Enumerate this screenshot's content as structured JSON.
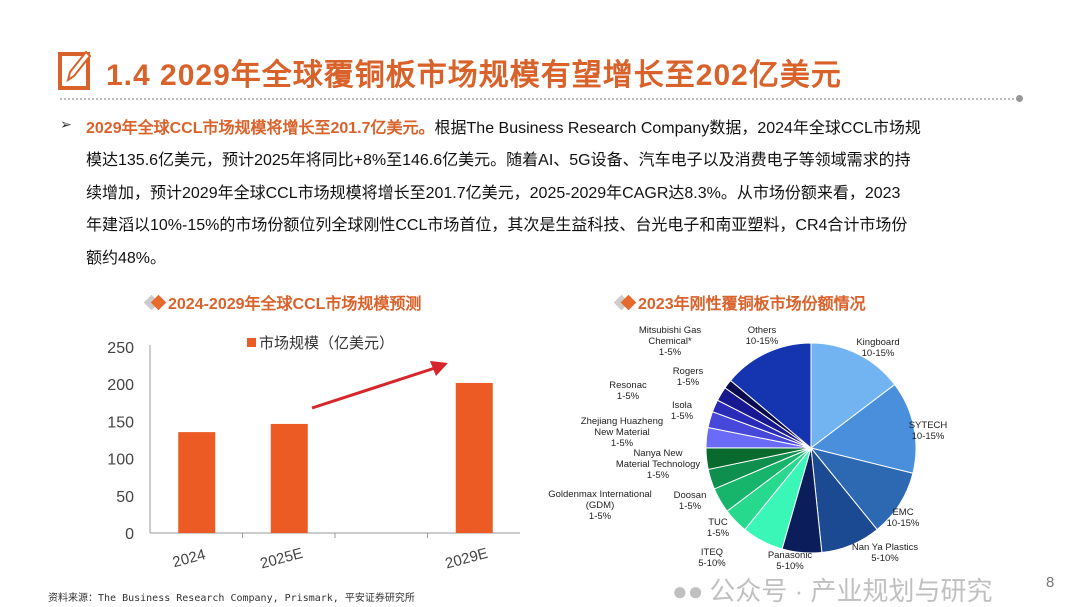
{
  "header": {
    "title": "1.4 2029年全球覆铜板市场规模有望增长至202亿美元",
    "icon": "edit-pencil-icon"
  },
  "body": {
    "highlight": "2029年全球CCL市场规模将增长至201.7亿美元。",
    "lines": [
      "根据The Business Research Company数据，2024年全球CCL市场规",
      "模达135.6亿美元，预计2025年将同比+8%至146.6亿美元。随着AI、5G设备、汽车电子以及消费电子等领域需求的持",
      "续增加，预计2029年全球CCL市场规模将增长至201.7亿美元，2025-2029年CAGR达8.3%。从市场份额来看，2023",
      "年建滔以10%-15%的市场份额位列全球刚性CCL市场首位，其次是生益科技、台光电子和南亚塑料，CR4合计市场份",
      "额约48%。"
    ]
  },
  "colors": {
    "accent": "#d9622b",
    "bar": "#ec5b24",
    "arrow": "#d7262b"
  },
  "chart_data": [
    {
      "type": "bar",
      "title": "2024-2029年全球CCL市场规模预测",
      "categories": [
        "2024",
        "2025E",
        "",
        "2029E"
      ],
      "series": [
        {
          "name": "市场规模（亿美元）",
          "values": [
            135.6,
            146.6,
            null,
            201.7
          ]
        }
      ],
      "ylim": [
        0,
        250
      ],
      "yticks": [
        "0",
        "50",
        "100",
        "150",
        "200",
        "250"
      ],
      "legend": "top",
      "grid": false
    },
    {
      "type": "pie",
      "title": "2023年刚性覆铜板市场份额情况",
      "slices": [
        {
          "label": "Kingboard",
          "range": "10-15%",
          "value": 14.7,
          "color": "#72b4f2"
        },
        {
          "label": "SYTECH",
          "range": "10-15%",
          "value": 14.2,
          "color": "#4a8fdb"
        },
        {
          "label": "EMC",
          "range": "10-15%",
          "value": 10.3,
          "color": "#2d68b3"
        },
        {
          "label": "Nan Ya Plastics",
          "range": "5-10%",
          "value": 9.2,
          "color": "#1b4a93"
        },
        {
          "label": "Panasonic",
          "range": "5-10%",
          "value": 6.1,
          "color": "#0c1d5c"
        },
        {
          "label": "ITEQ",
          "range": "5-10%",
          "value": 6.4,
          "color": "#3af7b8"
        },
        {
          "label": "TUC",
          "range": "1-5%",
          "value": 3.9,
          "color": "#27d98d"
        },
        {
          "label": "Doosan",
          "range": "1-5%",
          "value": 3.9,
          "color": "#17b56c"
        },
        {
          "label": "Goldenmax International (GDM)",
          "range": "1-5%",
          "value": 3.1,
          "color": "#0f8f4e"
        },
        {
          "label": "Nanya New Material Technology",
          "range": "1-5%",
          "value": 3.3,
          "color": "#086a2c"
        },
        {
          "label": "Zhejiang Huazheng New Material",
          "range": "1-5%",
          "value": 3.1,
          "color": "#6a6cf7"
        },
        {
          "label": "Isola",
          "range": "1-5%",
          "value": 2.5,
          "color": "#4747d9"
        },
        {
          "label": "Resonac",
          "range": "1-5%",
          "value": 1.9,
          "color": "#2a2ab8"
        },
        {
          "label": "Rogers",
          "range": "1-5%",
          "value": 2.2,
          "color": "#181890"
        },
        {
          "label": "Mitsubishi Gas Chemical*",
          "range": "1-5%",
          "value": 1.4,
          "color": "#0a0a4e"
        },
        {
          "label": "Others",
          "range": "10-15%",
          "value": 13.9,
          "color": "#1535b0"
        }
      ]
    }
  ],
  "footer": {
    "source": "资料来源：The Business Research Company, Prismark, 平安证券研究所",
    "page": "8"
  },
  "watermark": {
    "text": "公众号 · 产业规划与研究"
  }
}
